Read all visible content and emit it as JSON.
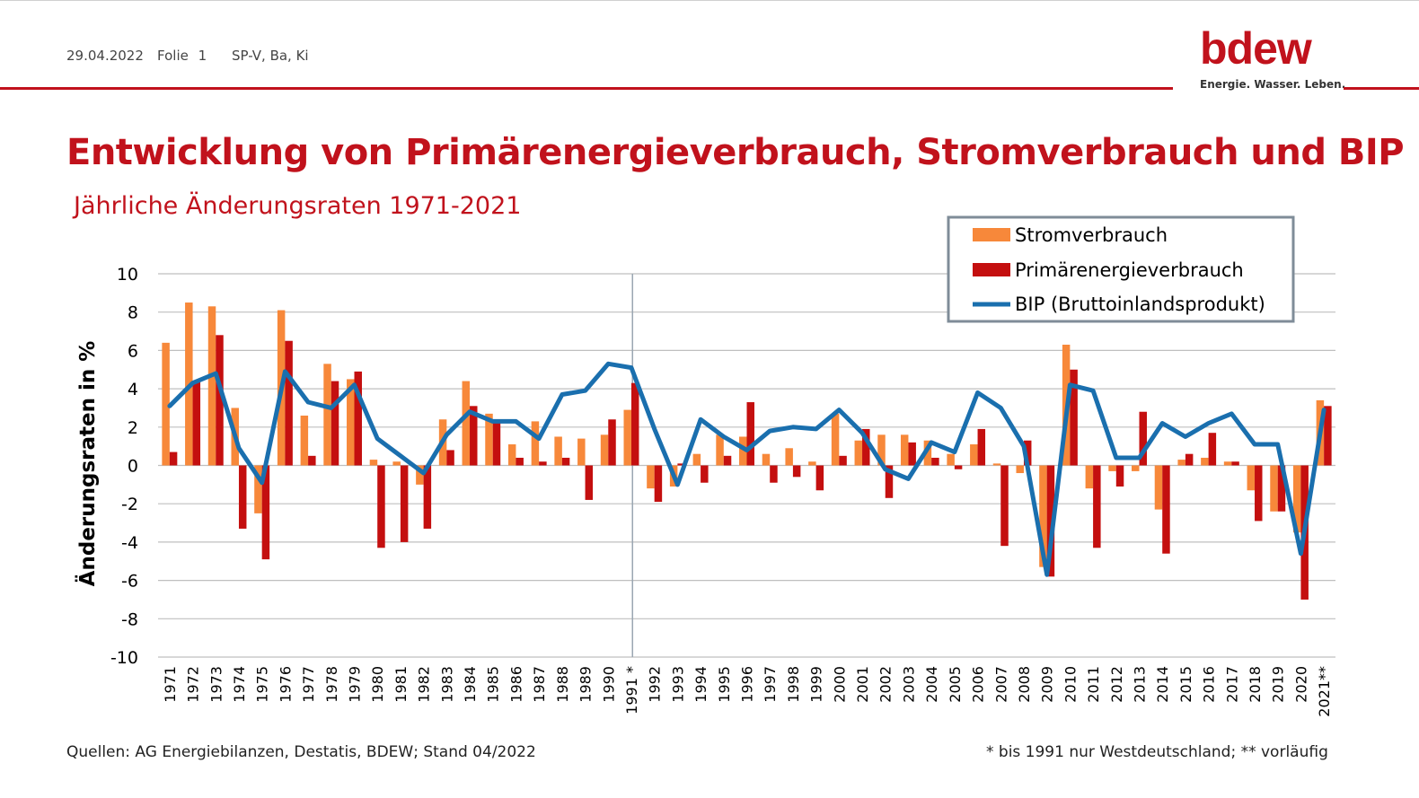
{
  "header": {
    "date": "29.04.2022",
    "slide_label": "Folie",
    "slide_number": "1",
    "author": "SP-V, Ba, Ki",
    "logo_text": "bdew",
    "tagline": "Energie. Wasser. Leben."
  },
  "title": "Entwicklung von Primärenergieverbrauch, Stromverbrauch und BIP",
  "subtitle": "Jährliche Änderungsraten 1971-2021",
  "footer": {
    "sources": "Quellen: AG Energiebilanzen, Destatis, BDEW; Stand 04/2022",
    "note": "* bis 1991 nur Westdeutschland; ** vorläufig"
  },
  "colors": {
    "strom": "#f7883a",
    "primaer": "#c40f0f",
    "bip": "#1a6fae",
    "brand": "#c1121c",
    "grid": "#bfbfbf"
  },
  "chart_data": {
    "type": "bar",
    "ylabel": "Änderungsraten in %",
    "ylim": [
      -10,
      10
    ],
    "yticks": [
      10,
      8,
      6,
      4,
      2,
      0,
      -2,
      -4,
      -6,
      -8,
      -10
    ],
    "grid": true,
    "legend_position": "top-right",
    "categories": [
      "1971",
      "1972",
      "1973",
      "1974",
      "1975",
      "1976",
      "1977",
      "1978",
      "1979",
      "1980",
      "1981",
      "1982",
      "1983",
      "1984",
      "1985",
      "1986",
      "1987",
      "1988",
      "1989",
      "1990",
      "1991 *",
      "1992",
      "1993",
      "1994",
      "1995",
      "1996",
      "1997",
      "1998",
      "1999",
      "2000",
      "2001",
      "2002",
      "2003",
      "2004",
      "2005",
      "2006",
      "2007",
      "2008",
      "2009",
      "2010",
      "2011",
      "2012",
      "2013",
      "2014",
      "2015",
      "2016",
      "2017",
      "2018",
      "2019",
      "2020",
      "2021**"
    ],
    "series": [
      {
        "name": "Stromverbrauch",
        "type": "bar",
        "values": [
          6.4,
          8.5,
          8.3,
          3.0,
          -2.5,
          8.1,
          2.6,
          5.3,
          4.5,
          0.3,
          0.2,
          -1.0,
          2.4,
          4.4,
          2.7,
          1.1,
          2.3,
          1.5,
          1.4,
          1.6,
          2.9,
          -1.2,
          -1.1,
          0.6,
          1.6,
          1.5,
          0.6,
          0.9,
          0.2,
          2.7,
          1.3,
          1.6,
          1.6,
          1.3,
          0.6,
          1.1,
          0.1,
          -0.4,
          -5.3,
          6.3,
          -1.2,
          -0.3,
          -0.3,
          -2.3,
          0.3,
          0.4,
          0.2,
          -1.3,
          -2.4,
          -3.5,
          3.4
        ]
      },
      {
        "name": "Primärenergieverbrauch",
        "type": "bar",
        "values": [
          0.7,
          4.4,
          6.8,
          -3.3,
          -4.9,
          6.5,
          0.5,
          4.4,
          4.9,
          -4.3,
          -4.0,
          -3.3,
          0.8,
          3.1,
          2.4,
          0.4,
          0.2,
          0.4,
          -1.8,
          2.4,
          4.3,
          -1.9,
          0.1,
          -0.9,
          0.5,
          3.3,
          -0.9,
          -0.6,
          -1.3,
          0.5,
          1.9,
          -1.7,
          1.2,
          0.4,
          -0.2,
          1.9,
          -4.2,
          1.3,
          -5.8,
          5.0,
          -4.3,
          -1.1,
          2.8,
          -4.6,
          0.6,
          1.7,
          0.2,
          -2.9,
          -2.4,
          -7.0,
          3.1
        ]
      },
      {
        "name": "BIP (Bruttoinlandsprodukt)",
        "type": "line",
        "values": [
          3.1,
          4.3,
          4.8,
          0.9,
          -0.9,
          4.9,
          3.3,
          3.0,
          4.2,
          1.4,
          0.5,
          -0.4,
          1.6,
          2.8,
          2.3,
          2.3,
          1.4,
          3.7,
          3.9,
          5.3,
          5.1,
          1.9,
          -1.0,
          2.4,
          1.5,
          0.8,
          1.8,
          2.0,
          1.9,
          2.9,
          1.7,
          -0.2,
          -0.7,
          1.2,
          0.7,
          3.8,
          3.0,
          1.0,
          -5.7,
          4.2,
          3.9,
          0.4,
          0.4,
          2.2,
          1.5,
          2.2,
          2.7,
          1.1,
          1.1,
          -4.6,
          2.9
        ]
      }
    ],
    "divider_after": "1991 *"
  }
}
